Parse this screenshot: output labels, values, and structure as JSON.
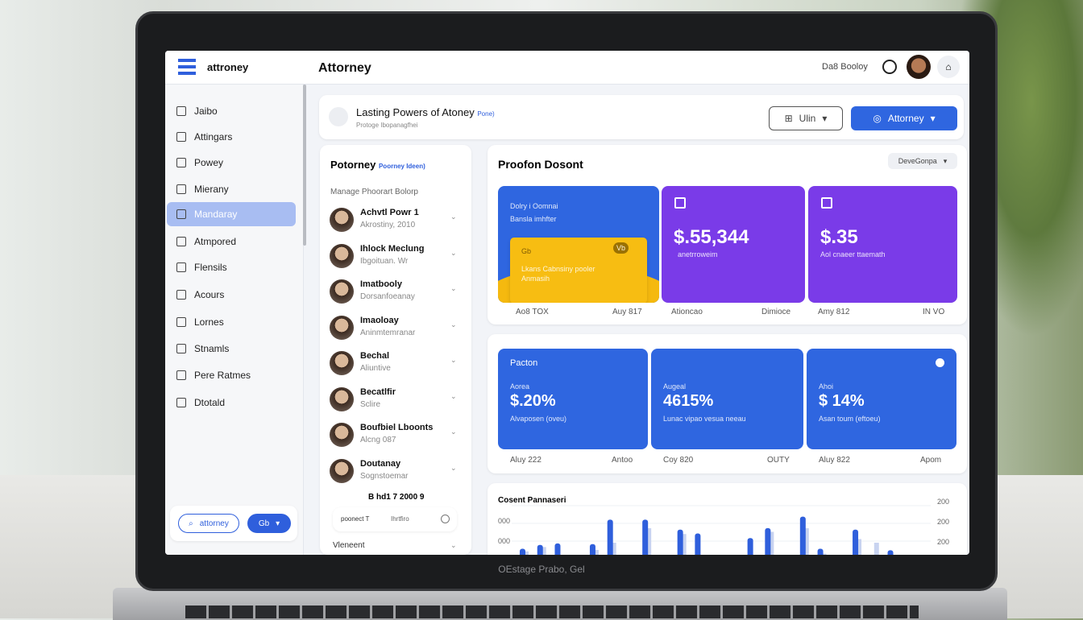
{
  "header": {
    "logo": "attroney",
    "title": "Attorney",
    "user_name": "Da8 Booloy"
  },
  "sidebar": {
    "items": [
      {
        "label": "Jaibo",
        "icon": "user-icon"
      },
      {
        "label": "Attingars",
        "icon": "grid-icon"
      },
      {
        "label": "Powey",
        "icon": "folder-icon"
      },
      {
        "label": "Mierany",
        "icon": "list-icon"
      },
      {
        "label": "Mandaray",
        "icon": "avatar-icon",
        "active": true
      },
      {
        "label": "Atmpored",
        "icon": "grid-icon"
      },
      {
        "label": "Flensils",
        "icon": "calendar-icon"
      },
      {
        "label": "Acours",
        "icon": "square-icon"
      },
      {
        "label": "Lornes",
        "icon": "chart-icon"
      },
      {
        "label": "Stnamls",
        "icon": "list-icon"
      },
      {
        "label": "Pere Ratmes",
        "icon": "key-icon"
      },
      {
        "label": "Dtotald",
        "icon": "people-icon"
      }
    ],
    "footer": {
      "outline_button": "attorney",
      "primary_button": "Gb"
    }
  },
  "banner": {
    "title": "Lasting Powers of Atoney",
    "tag": "Pone)",
    "subtitle": "Protoge Ibopanagfhei",
    "filter_label": "Ulin",
    "primary_label": "Attorney"
  },
  "people": {
    "title": "Potorney",
    "title_link": "Poorney Ideen)",
    "section": "Manage Phoorart Bolorp",
    "items": [
      {
        "name": "Achvtl Powr 1",
        "sub": "Akrostiny, 2010"
      },
      {
        "name": "Ihlock Meclung",
        "sub": "Ibgoituan. Wr"
      },
      {
        "name": "Imatbooly",
        "sub": "Dorsanfoeanay"
      },
      {
        "name": "Imaoloay",
        "sub": "Aninmtemranar"
      },
      {
        "name": "Bechal",
        "sub": "Aliuntive"
      },
      {
        "name": "Becatlfir",
        "sub": "Sclire"
      },
      {
        "name": "Boufbiel Lboonts",
        "sub": "Alcng 087"
      },
      {
        "name": "Doutanay",
        "sub": "Sognstoemar"
      }
    ],
    "footer_line": "B hd1 7 2000 9",
    "chip1": "poonect T",
    "chip2": "Ihrtfiro",
    "last": "Vleneent"
  },
  "overview": {
    "title": "Proofon Dosont",
    "dropdown": "DeveGonpa",
    "tiles": [
      {
        "label": "Dolry i Oomnai",
        "sub": "Bansla imhfter",
        "card_badge": "Vb",
        "card_icon": "Gb",
        "card_text": "Lkans Cabnsiny pooler",
        "card_text2": "Anmasih",
        "foot_left": "Ao8 TOX",
        "foot_right": "Auy 817",
        "color": "#2f66e0"
      },
      {
        "value": "$.55,344",
        "sub": "anetrroweim",
        "foot_left": "Ationcao",
        "foot_right": "Dimioce",
        "color": "#7a3be8"
      },
      {
        "value": "$.35",
        "sub": "Aol cnaeer ttaemath",
        "foot_left": "Amy 812",
        "foot_right": "IN VO",
        "color": "#7a3be8"
      }
    ],
    "accent_yellow": "#f5b90f"
  },
  "stats": {
    "tiles": [
      {
        "label": "Pacton",
        "kicker": "Aorea",
        "value": "$.20%",
        "sub": "Alvaposen (oveu)",
        "foot_left": "Aluy 222",
        "foot_right": "Antoo"
      },
      {
        "kicker": "Augeal",
        "value": "4615%",
        "sub": "Lunac vipao vesua neeau",
        "foot_left": "Coy 820",
        "foot_right": "OUTY"
      },
      {
        "kicker": "Ahoi",
        "value": "$ 14%",
        "sub": "Asan toum (eftoeu)",
        "foot_left": "Aluy 822",
        "foot_right": "Apom"
      }
    ],
    "color": "#2f66e0"
  },
  "chart_data": {
    "type": "bar",
    "title": "Cosent Pannaseri",
    "y_left_ticks": [
      "000",
      "000"
    ],
    "y_right_ticks": [
      "200",
      "200",
      "200"
    ],
    "values": [
      30,
      35,
      37,
      17,
      36,
      68,
      12,
      68,
      10,
      55,
      50,
      22,
      12,
      44,
      57,
      15,
      72,
      30,
      8,
      55,
      15,
      28,
      22
    ],
    "secondary_values": [
      28,
      34,
      10,
      14,
      30,
      40,
      6,
      60,
      8,
      52,
      20,
      18,
      8,
      12,
      55,
      10,
      60,
      25,
      6,
      45,
      40,
      12,
      10
    ],
    "color": "#2f5fdc",
    "secondary_color": "#c8d3f0",
    "grid": true
  }
}
